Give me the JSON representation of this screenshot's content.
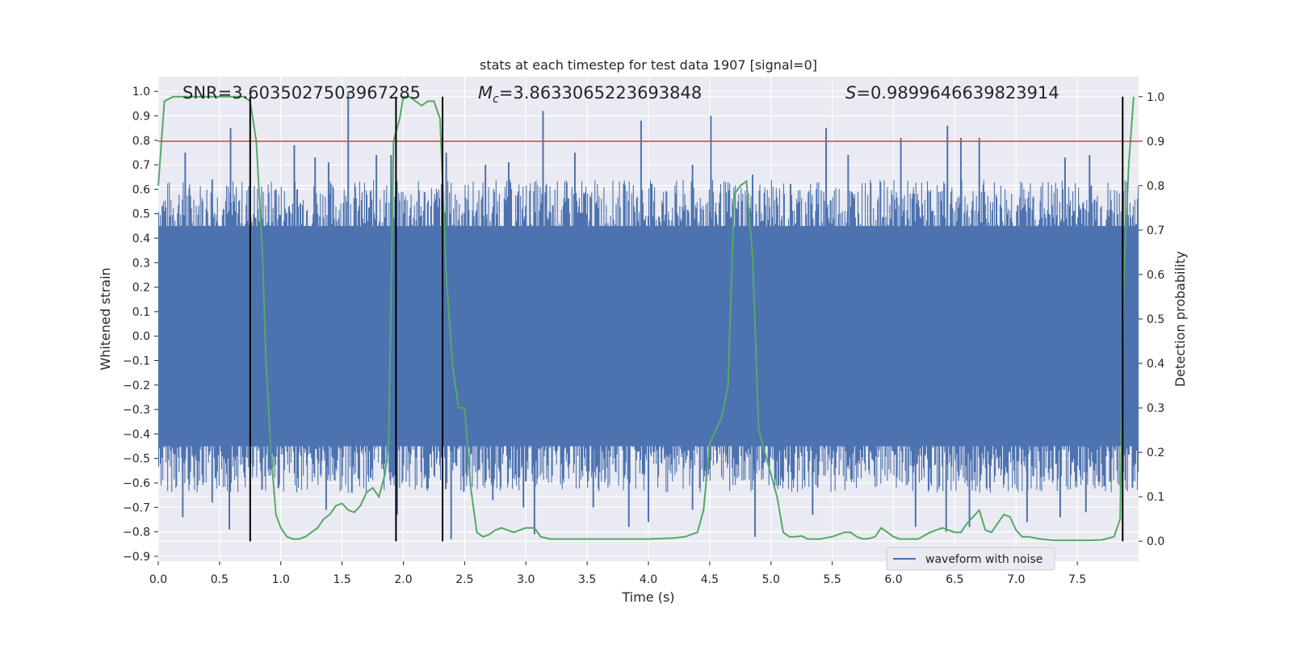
{
  "chart_data": {
    "type": "line",
    "title": "stats at each timestep for test data 1907 [signal=0]",
    "xlabel": "Time (s)",
    "ylabel": "Whitened strain",
    "y2label": "Detection probability",
    "xlim": [
      0.0,
      8.0
    ],
    "ylim": [
      -0.92,
      1.06
    ],
    "y2lim": [
      -0.045,
      1.045
    ],
    "xticks": [
      "0.0",
      "0.5",
      "1.0",
      "1.5",
      "2.0",
      "2.5",
      "3.0",
      "3.5",
      "4.0",
      "4.5",
      "5.0",
      "5.5",
      "6.0",
      "6.5",
      "7.0",
      "7.5"
    ],
    "yticks": [
      "1.0",
      "0.9",
      "0.8",
      "0.7",
      "0.6",
      "0.5",
      "0.4",
      "0.3",
      "0.2",
      "0.1",
      "0.0",
      "−0.1",
      "−0.2",
      "−0.3",
      "−0.4",
      "−0.5",
      "−0.6",
      "−0.7",
      "−0.8",
      "−0.9"
    ],
    "y2ticks": [
      "1.0",
      "0.9",
      "0.8",
      "0.7",
      "0.6",
      "0.5",
      "0.4",
      "0.3",
      "0.2",
      "0.1",
      "0.0"
    ],
    "annotations": {
      "snr": "SNR=3.6035027503967285",
      "mc_symbol": "M",
      "mc_sub": "c",
      "mc_value": "=3.8633065223693848",
      "s_symbol": "S",
      "s_value": "=0.9899646639823914"
    },
    "legend": {
      "placement": "bottom-right",
      "entries": [
        "waveform with noise"
      ]
    },
    "grid": true,
    "threshold": {
      "axis": "right",
      "value": 0.9,
      "color": "#c44e52"
    },
    "vlines": [
      0.75,
      1.94,
      2.32,
      7.87
    ],
    "series": [
      {
        "name": "waveform with noise",
        "axis": "left",
        "color": "#4c72b0",
        "kind": "noise",
        "band_low": -0.45,
        "band_high": 0.45,
        "spikes": [
          {
            "x": 0.04,
            "v": 0.53
          },
          {
            "x": 0.22,
            "v": 0.75
          },
          {
            "x": 0.44,
            "v": 0.64
          },
          {
            "x": 0.59,
            "v": 0.85
          },
          {
            "x": 0.96,
            "v": 0.6
          },
          {
            "x": 1.11,
            "v": 0.78
          },
          {
            "x": 1.28,
            "v": 0.73
          },
          {
            "x": 1.39,
            "v": 0.71
          },
          {
            "x": 1.55,
            "v": 1.0
          },
          {
            "x": 1.78,
            "v": 0.74
          },
          {
            "x": 1.9,
            "v": 0.74
          },
          {
            "x": 2.35,
            "v": 0.75
          },
          {
            "x": 2.67,
            "v": 0.7
          },
          {
            "x": 2.86,
            "v": 0.71
          },
          {
            "x": 3.14,
            "v": 0.92
          },
          {
            "x": 3.4,
            "v": 0.75
          },
          {
            "x": 3.94,
            "v": 0.88
          },
          {
            "x": 4.36,
            "v": 0.7
          },
          {
            "x": 4.51,
            "v": 0.9
          },
          {
            "x": 4.85,
            "v": 0.66
          },
          {
            "x": 5.45,
            "v": 0.85
          },
          {
            "x": 5.63,
            "v": 0.74
          },
          {
            "x": 6.06,
            "v": 0.81
          },
          {
            "x": 6.44,
            "v": 0.86
          },
          {
            "x": 6.55,
            "v": 0.81
          },
          {
            "x": 6.7,
            "v": 0.81
          },
          {
            "x": 7.4,
            "v": 0.73
          },
          {
            "x": 7.6,
            "v": 0.74
          },
          {
            "x": 0.2,
            "v": -0.74
          },
          {
            "x": 0.44,
            "v": -0.68
          },
          {
            "x": 0.58,
            "v": -0.79
          },
          {
            "x": 1.37,
            "v": -0.71
          },
          {
            "x": 1.58,
            "v": -0.64
          },
          {
            "x": 1.95,
            "v": -0.73
          },
          {
            "x": 2.39,
            "v": -0.83
          },
          {
            "x": 2.73,
            "v": -0.67
          },
          {
            "x": 2.98,
            "v": -0.7
          },
          {
            "x": 3.07,
            "v": -0.81
          },
          {
            "x": 3.55,
            "v": -0.7
          },
          {
            "x": 3.84,
            "v": -0.78
          },
          {
            "x": 4.0,
            "v": -0.76
          },
          {
            "x": 4.36,
            "v": -0.71
          },
          {
            "x": 4.87,
            "v": -0.82
          },
          {
            "x": 5.34,
            "v": -0.73
          },
          {
            "x": 6.18,
            "v": -0.78
          },
          {
            "x": 6.43,
            "v": -0.8
          },
          {
            "x": 6.62,
            "v": -0.78
          },
          {
            "x": 7.09,
            "v": -0.76
          },
          {
            "x": 7.36,
            "v": -0.74
          },
          {
            "x": 7.57,
            "v": -0.72
          },
          {
            "x": 7.95,
            "v": -0.62
          }
        ]
      },
      {
        "name": "",
        "axis": "right",
        "color": "#55a868",
        "x": [
          0.0,
          0.05,
          0.12,
          0.25,
          0.45,
          0.62,
          0.7,
          0.75,
          0.8,
          0.85,
          0.88,
          0.92,
          0.96,
          1.0,
          1.05,
          1.1,
          1.15,
          1.2,
          1.25,
          1.3,
          1.35,
          1.4,
          1.45,
          1.5,
          1.55,
          1.6,
          1.65,
          1.7,
          1.75,
          1.8,
          1.85,
          1.88,
          1.92,
          1.97,
          2.0,
          2.05,
          2.1,
          2.15,
          2.2,
          2.25,
          2.3,
          2.35,
          2.4,
          2.45,
          2.5,
          2.55,
          2.6,
          2.65,
          2.7,
          2.75,
          2.8,
          2.9,
          3.0,
          3.07,
          3.12,
          3.2,
          3.3,
          3.4,
          3.6,
          3.8,
          4.0,
          4.2,
          4.3,
          4.4,
          4.45,
          4.5,
          4.55,
          4.6,
          4.65,
          4.7,
          4.75,
          4.8,
          4.85,
          4.9,
          4.95,
          5.0,
          5.05,
          5.1,
          5.15,
          5.2,
          5.25,
          5.3,
          5.4,
          5.5,
          5.6,
          5.65,
          5.7,
          5.75,
          5.8,
          5.85,
          5.9,
          5.95,
          6.0,
          6.05,
          6.1,
          6.2,
          6.3,
          6.4,
          6.45,
          6.5,
          6.55,
          6.6,
          6.65,
          6.7,
          6.75,
          6.8,
          6.85,
          6.9,
          6.95,
          7.0,
          7.05,
          7.1,
          7.2,
          7.3,
          7.4,
          7.5,
          7.6,
          7.7,
          7.8,
          7.85,
          7.88,
          7.92,
          7.96
        ],
        "values": [
          0.8,
          0.99,
          1.0,
          1.0,
          1.0,
          1.0,
          1.0,
          0.99,
          0.9,
          0.65,
          0.4,
          0.2,
          0.06,
          0.03,
          0.01,
          0.005,
          0.005,
          0.01,
          0.02,
          0.03,
          0.05,
          0.06,
          0.08,
          0.085,
          0.07,
          0.065,
          0.08,
          0.11,
          0.12,
          0.1,
          0.15,
          0.22,
          0.9,
          0.95,
          1.0,
          1.0,
          0.99,
          0.98,
          0.99,
          0.99,
          0.95,
          0.6,
          0.4,
          0.3,
          0.3,
          0.12,
          0.02,
          0.01,
          0.015,
          0.025,
          0.03,
          0.02,
          0.03,
          0.03,
          0.01,
          0.005,
          0.005,
          0.005,
          0.005,
          0.005,
          0.005,
          0.007,
          0.01,
          0.02,
          0.07,
          0.22,
          0.25,
          0.28,
          0.35,
          0.78,
          0.8,
          0.81,
          0.64,
          0.25,
          0.2,
          0.15,
          0.1,
          0.02,
          0.01,
          0.01,
          0.012,
          0.005,
          0.005,
          0.01,
          0.02,
          0.02,
          0.01,
          0.005,
          0.006,
          0.01,
          0.03,
          0.02,
          0.01,
          0.005,
          0.005,
          0.005,
          0.02,
          0.03,
          0.025,
          0.02,
          0.02,
          0.04,
          0.055,
          0.07,
          0.025,
          0.02,
          0.04,
          0.06,
          0.055,
          0.025,
          0.01,
          0.01,
          0.005,
          0.002,
          0.002,
          0.002,
          0.002,
          0.003,
          0.01,
          0.05,
          0.6,
          0.85,
          1.0
        ]
      }
    ]
  }
}
